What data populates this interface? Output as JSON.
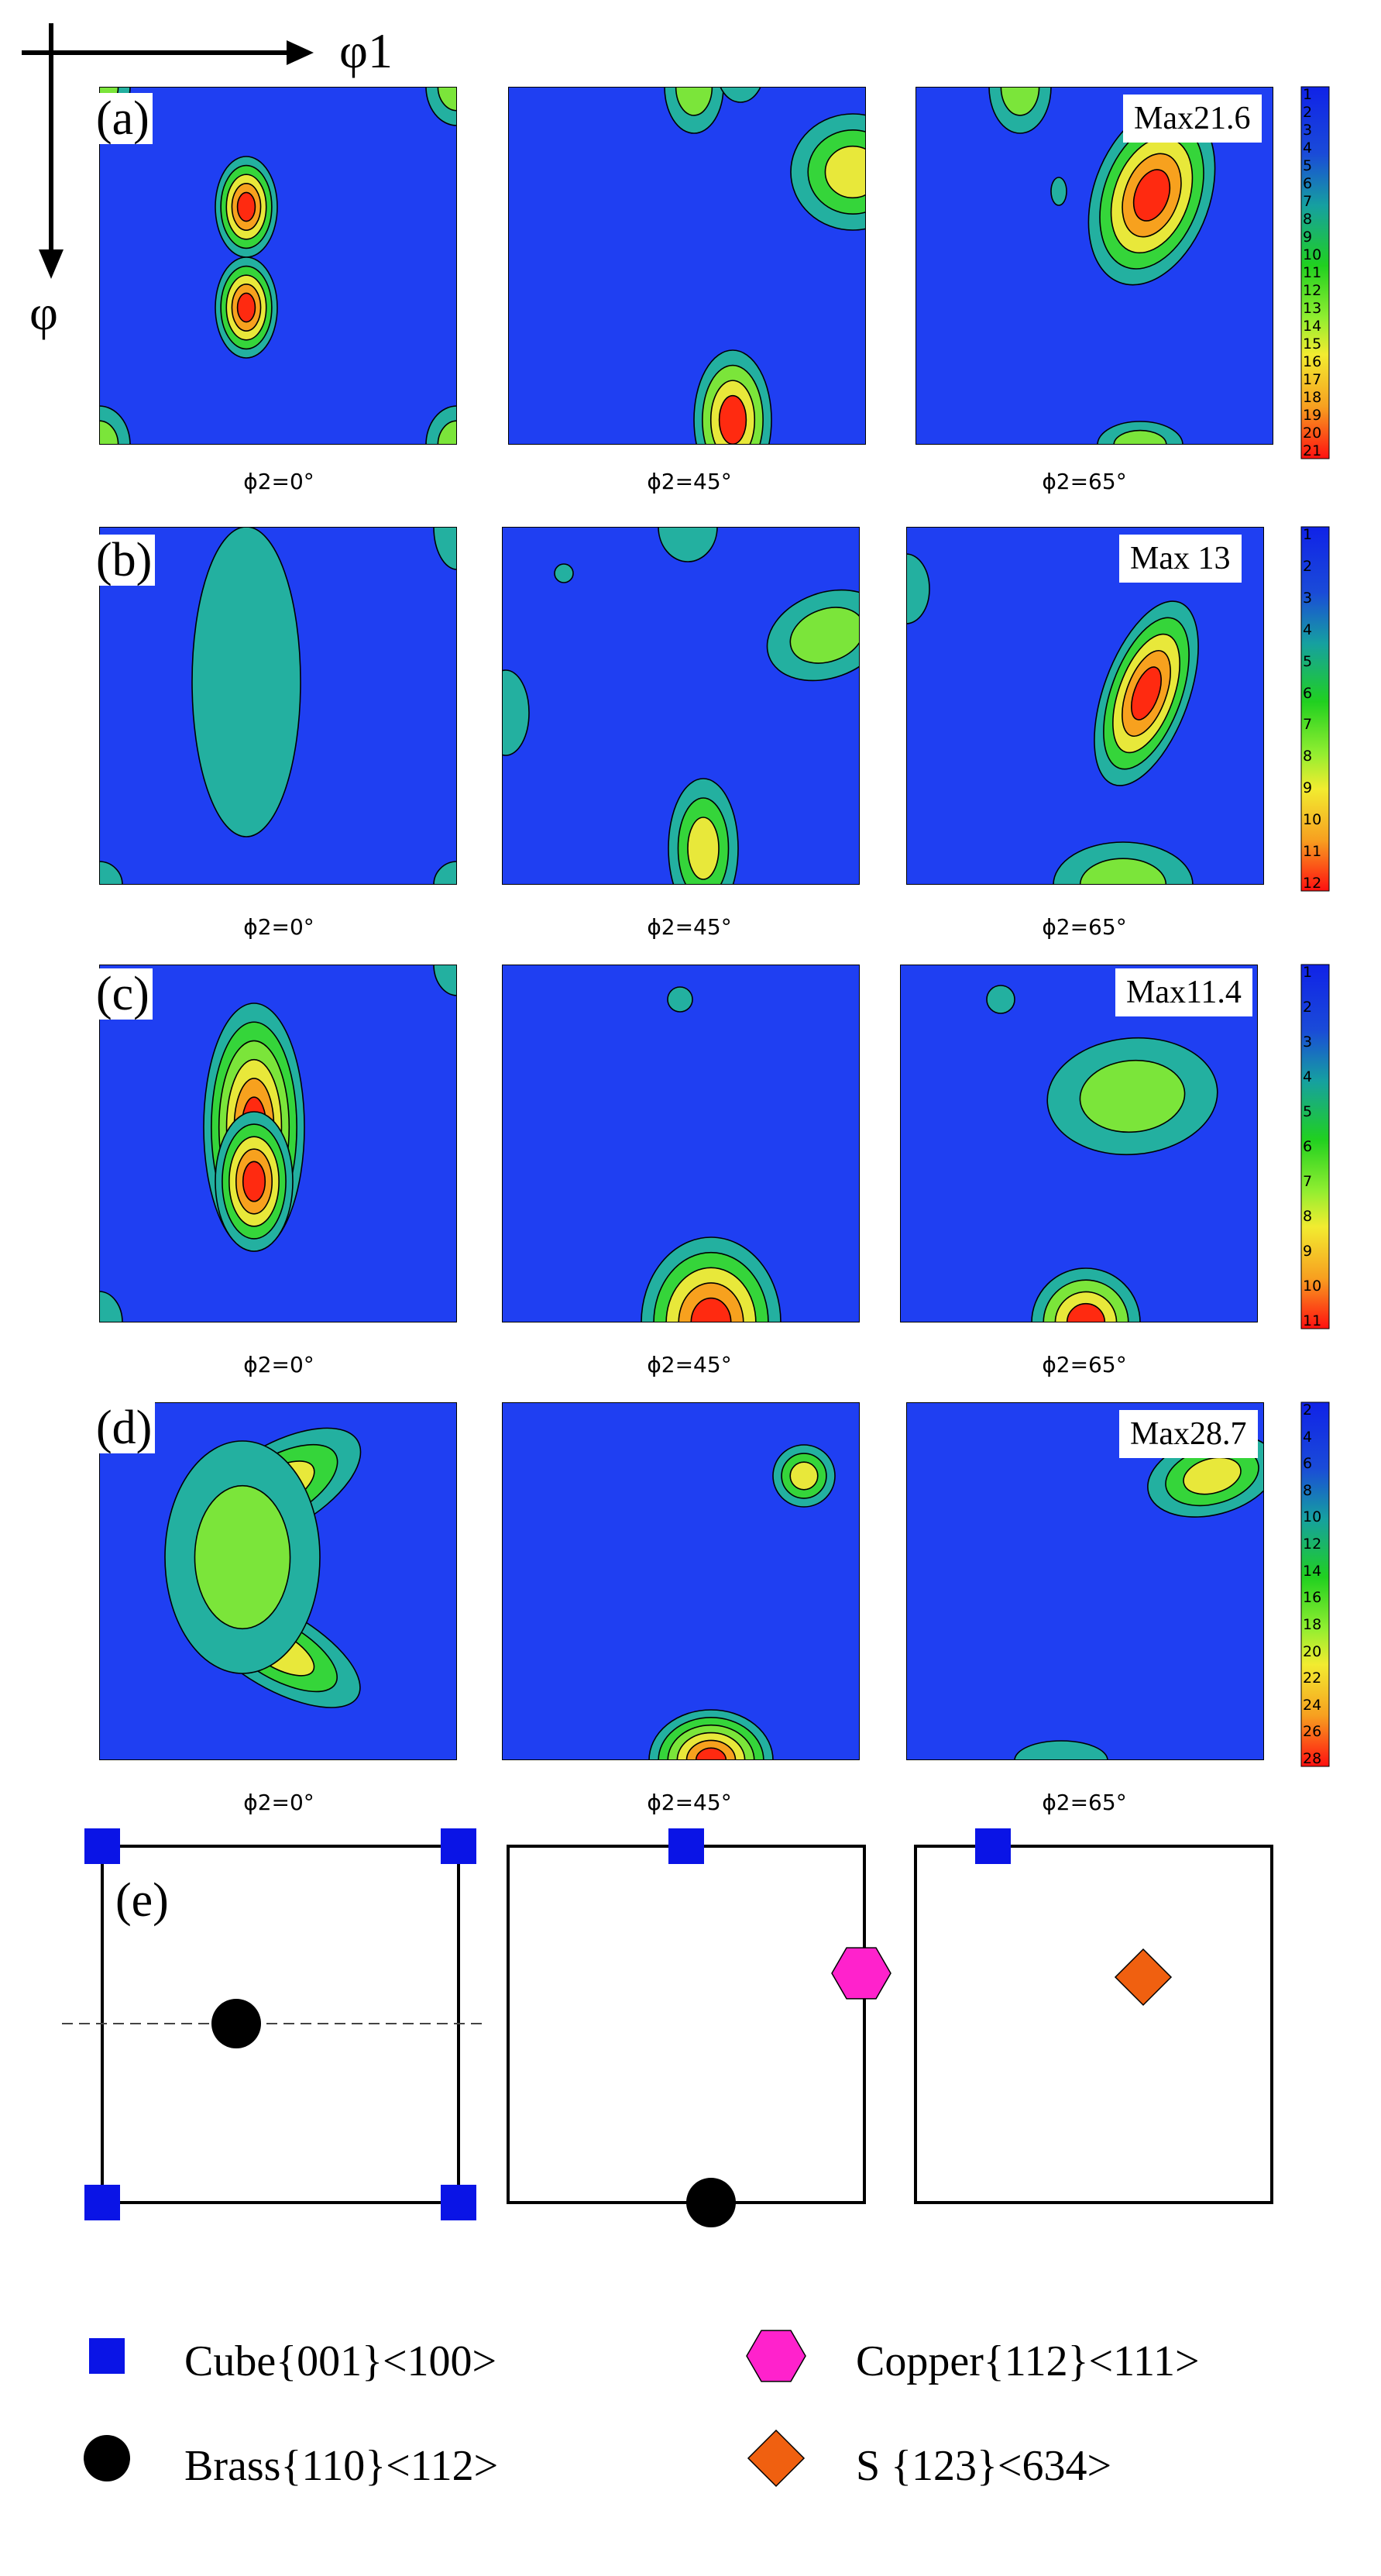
{
  "axes": {
    "horizontal": "φ1",
    "vertical": "φ"
  },
  "rows": [
    {
      "label": "(a)",
      "max_label": "Max21.6",
      "sections": [
        "ϕ2=0°",
        "ϕ2=45°",
        "ϕ2=65°"
      ],
      "scale_ticks": [
        "1",
        "2",
        "3",
        "4",
        "5",
        "6",
        "7",
        "8",
        "9",
        "10",
        "11",
        "12",
        "13",
        "14",
        "15",
        "16",
        "17",
        "18",
        "19",
        "20",
        "21"
      ]
    },
    {
      "label": "(b)",
      "max_label": "Max 13",
      "sections": [
        "ϕ2=0°",
        "ϕ2=45°",
        "ϕ2=65°"
      ],
      "scale_ticks": [
        "1",
        "2",
        "3",
        "4",
        "5",
        "6",
        "7",
        "8",
        "9",
        "10",
        "11",
        "12"
      ]
    },
    {
      "label": "(c)",
      "max_label": "Max11.4",
      "sections": [
        "ϕ2=0°",
        "ϕ2=45°",
        "ϕ2=65°"
      ],
      "scale_ticks": [
        "1",
        "2",
        "3",
        "4",
        "5",
        "6",
        "7",
        "8",
        "9",
        "10",
        "11"
      ]
    },
    {
      "label": "(d)",
      "max_label": "Max28.7",
      "sections": [
        "ϕ2=0°",
        "ϕ2=45°",
        "ϕ2=65°"
      ],
      "scale_ticks": [
        "2",
        "4",
        "6",
        "8",
        "10",
        "12",
        "14",
        "16",
        "18",
        "20",
        "22",
        "24",
        "26",
        "28"
      ]
    }
  ],
  "schematic": {
    "label": "(e)"
  },
  "legend": [
    {
      "id": "cube",
      "label": "Cube{001}<100>",
      "color": "#0a14e6",
      "shape": "square"
    },
    {
      "id": "copper",
      "label": "Copper{112}<111>",
      "color": "#ff22cc",
      "shape": "hexagon"
    },
    {
      "id": "brass",
      "label": "Brass{110}<112>",
      "color": "#000000",
      "shape": "circle"
    },
    {
      "id": "s",
      "label": "S {123}<634>",
      "color": "#f06010",
      "shape": "diamond"
    }
  ],
  "colors": {
    "background_level": "#1f3ff2",
    "peak": "#ff1a0a"
  }
}
